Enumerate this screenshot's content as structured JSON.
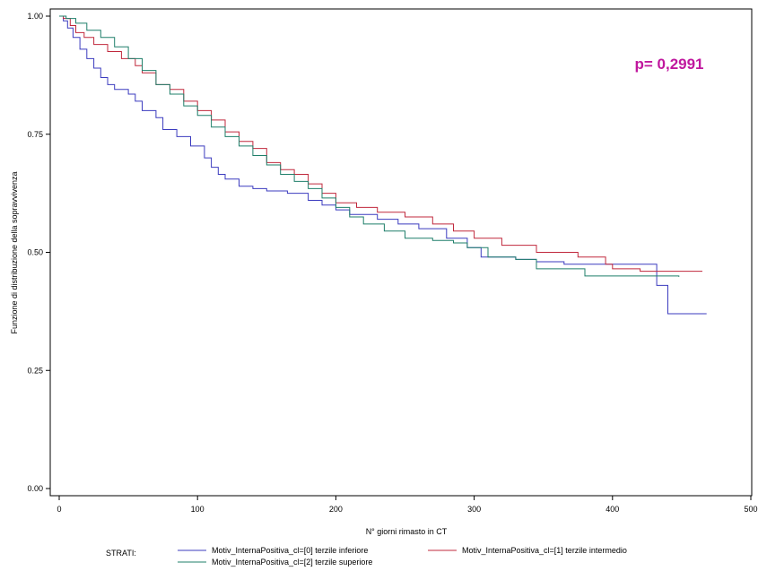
{
  "chart_data": {
    "type": "line",
    "step": true,
    "xlabel": "N° giorni rimasto in CT",
    "ylabel": "Funzione di distribuzione della sopravvivenza",
    "xlim": [
      0,
      500
    ],
    "ylim": [
      0,
      1
    ],
    "xticks": [
      0,
      100,
      200,
      300,
      400,
      500
    ],
    "yticks": [
      "0.00",
      "0.25",
      "0.50",
      "0.75",
      "1.00"
    ],
    "grid": false,
    "annotation": {
      "text": "p= 0,2991",
      "color": "#c0179e"
    },
    "legend": {
      "title": "STRATI:",
      "placement": "bottom"
    },
    "series": [
      {
        "name": "Motiv_InternaPositiva_cl=[0] terzile inferiore",
        "color": "#3b3bbf",
        "points": [
          [
            0,
            1.0
          ],
          [
            3,
            0.99
          ],
          [
            6,
            0.975
          ],
          [
            10,
            0.955
          ],
          [
            15,
            0.93
          ],
          [
            20,
            0.91
          ],
          [
            25,
            0.89
          ],
          [
            30,
            0.87
          ],
          [
            35,
            0.855
          ],
          [
            40,
            0.845
          ],
          [
            50,
            0.835
          ],
          [
            55,
            0.82
          ],
          [
            60,
            0.8
          ],
          [
            70,
            0.785
          ],
          [
            75,
            0.76
          ],
          [
            85,
            0.745
          ],
          [
            95,
            0.725
          ],
          [
            105,
            0.7
          ],
          [
            110,
            0.68
          ],
          [
            115,
            0.665
          ],
          [
            120,
            0.655
          ],
          [
            130,
            0.64
          ],
          [
            140,
            0.635
          ],
          [
            150,
            0.63
          ],
          [
            165,
            0.625
          ],
          [
            180,
            0.61
          ],
          [
            190,
            0.6
          ],
          [
            200,
            0.59
          ],
          [
            210,
            0.58
          ],
          [
            230,
            0.57
          ],
          [
            245,
            0.56
          ],
          [
            260,
            0.55
          ],
          [
            280,
            0.53
          ],
          [
            295,
            0.51
          ],
          [
            305,
            0.49
          ],
          [
            330,
            0.485
          ],
          [
            345,
            0.48
          ],
          [
            365,
            0.475
          ],
          [
            430,
            0.475
          ],
          [
            432,
            0.43
          ],
          [
            438,
            0.43
          ],
          [
            440,
            0.37
          ],
          [
            468,
            0.37
          ]
        ]
      },
      {
        "name": "Motiv_InternaPositiva_cl=[1] terzile intermedio",
        "color": "#c0283c",
        "points": [
          [
            0,
            1.0
          ],
          [
            3,
            0.995
          ],
          [
            8,
            0.98
          ],
          [
            12,
            0.965
          ],
          [
            18,
            0.955
          ],
          [
            25,
            0.94
          ],
          [
            35,
            0.925
          ],
          [
            45,
            0.91
          ],
          [
            55,
            0.895
          ],
          [
            60,
            0.88
          ],
          [
            70,
            0.855
          ],
          [
            80,
            0.845
          ],
          [
            90,
            0.82
          ],
          [
            100,
            0.8
          ],
          [
            110,
            0.78
          ],
          [
            120,
            0.755
          ],
          [
            130,
            0.735
          ],
          [
            140,
            0.72
          ],
          [
            150,
            0.69
          ],
          [
            160,
            0.675
          ],
          [
            170,
            0.665
          ],
          [
            180,
            0.645
          ],
          [
            190,
            0.625
          ],
          [
            200,
            0.605
          ],
          [
            215,
            0.595
          ],
          [
            230,
            0.585
          ],
          [
            250,
            0.575
          ],
          [
            270,
            0.56
          ],
          [
            285,
            0.545
          ],
          [
            300,
            0.53
          ],
          [
            320,
            0.515
          ],
          [
            345,
            0.5
          ],
          [
            375,
            0.49
          ],
          [
            395,
            0.475
          ],
          [
            400,
            0.465
          ],
          [
            420,
            0.46
          ],
          [
            465,
            0.46
          ]
        ]
      },
      {
        "name": "Motiv_InternaPositiva_cl=[2] terzile superiore",
        "color": "#1f7f6a",
        "points": [
          [
            0,
            1.0
          ],
          [
            5,
            0.995
          ],
          [
            12,
            0.985
          ],
          [
            20,
            0.97
          ],
          [
            30,
            0.955
          ],
          [
            40,
            0.935
          ],
          [
            50,
            0.91
          ],
          [
            60,
            0.885
          ],
          [
            70,
            0.855
          ],
          [
            80,
            0.835
          ],
          [
            90,
            0.81
          ],
          [
            100,
            0.79
          ],
          [
            110,
            0.765
          ],
          [
            120,
            0.745
          ],
          [
            130,
            0.725
          ],
          [
            140,
            0.705
          ],
          [
            150,
            0.685
          ],
          [
            160,
            0.665
          ],
          [
            170,
            0.65
          ],
          [
            180,
            0.635
          ],
          [
            190,
            0.615
          ],
          [
            200,
            0.595
          ],
          [
            210,
            0.575
          ],
          [
            220,
            0.56
          ],
          [
            235,
            0.545
          ],
          [
            250,
            0.53
          ],
          [
            270,
            0.525
          ],
          [
            285,
            0.52
          ],
          [
            295,
            0.51
          ],
          [
            310,
            0.49
          ],
          [
            330,
            0.485
          ],
          [
            345,
            0.465
          ],
          [
            380,
            0.45
          ],
          [
            448,
            0.448
          ]
        ]
      }
    ]
  }
}
